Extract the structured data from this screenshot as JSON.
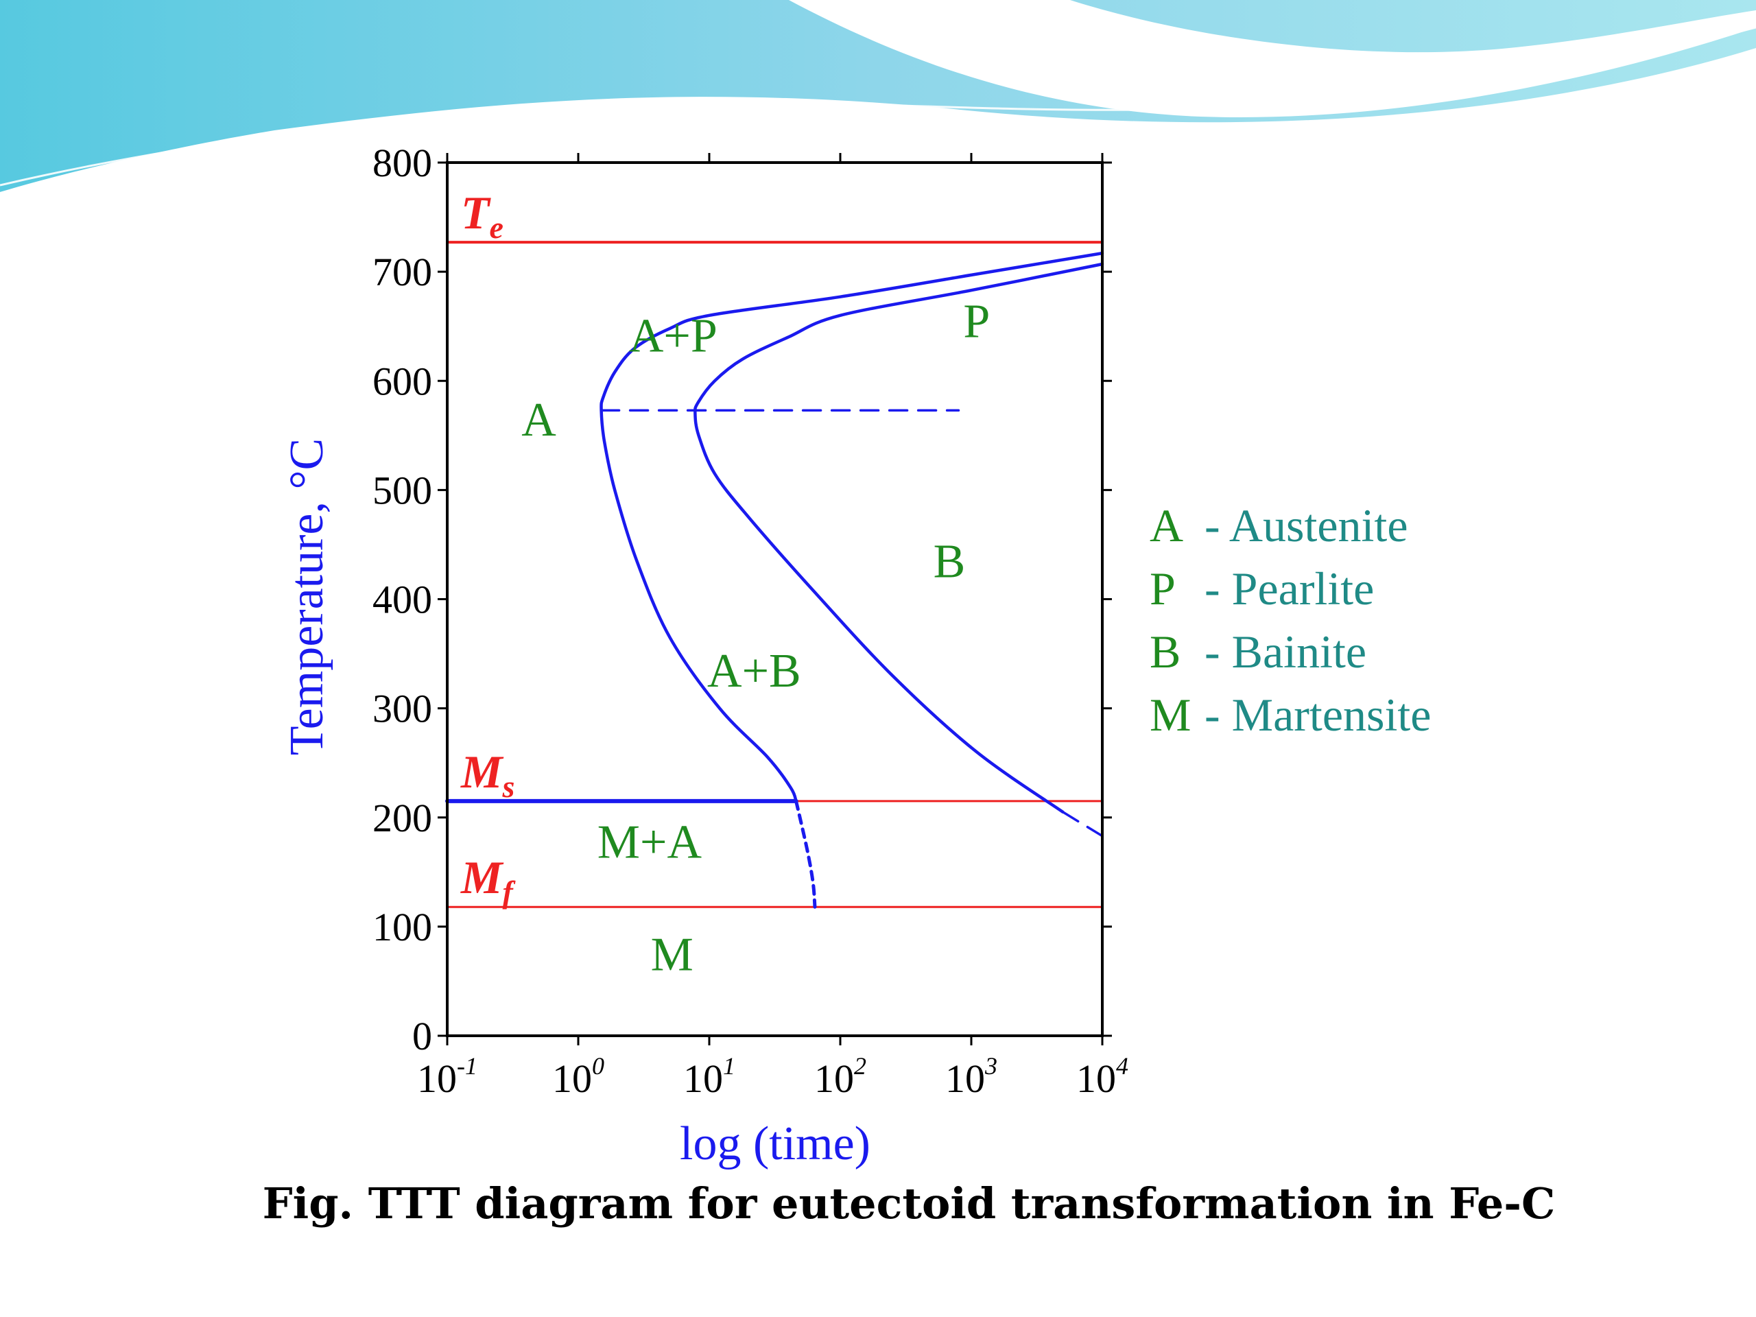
{
  "caption": "Fig. TTT diagram for eutectoid transformation in Fe-C",
  "colors": {
    "curve": "#1a1aee",
    "critical_line": "#ee2222",
    "region_label": "#1f8a1f",
    "legend_text": "#1f8a86",
    "axis": "#000000",
    "banner_light": "#bfeef0",
    "banner_dark": "#4fc0d8"
  },
  "legend": [
    {
      "key": "A",
      "label": "- Austenite"
    },
    {
      "key": "P",
      "label": "- Pearlite"
    },
    {
      "key": "B",
      "label": "- Bainite"
    },
    {
      "key": "M",
      "label": "- Martensite"
    }
  ],
  "chart_data": {
    "type": "line",
    "title": "",
    "xlabel": "log (time)",
    "ylabel": "Temperature, °C",
    "x_scale": "log10",
    "xlim": [
      0.1,
      10000
    ],
    "ylim": [
      0,
      800
    ],
    "x_ticks": [
      {
        "base": "10",
        "exp": "-1",
        "value": 0.1
      },
      {
        "base": "10",
        "exp": "0",
        "value": 1
      },
      {
        "base": "10",
        "exp": "1",
        "value": 10
      },
      {
        "base": "10",
        "exp": "2",
        "value": 100
      },
      {
        "base": "10",
        "exp": "3",
        "value": 1000
      },
      {
        "base": "10",
        "exp": "4",
        "value": 10000
      }
    ],
    "y_ticks": [
      0,
      100,
      200,
      300,
      400,
      500,
      600,
      700,
      800
    ],
    "reference_lines": [
      {
        "name": "Te",
        "main": "T",
        "sub": "e",
        "temperature": 727
      },
      {
        "name": "Ms",
        "main": "M",
        "sub": "s",
        "temperature": 215
      },
      {
        "name": "Mf",
        "main": "M",
        "sub": "f",
        "temperature": 118
      }
    ],
    "series": [
      {
        "name": "start-curve",
        "style": "solid",
        "points": [
          [
            10000,
            717
          ],
          [
            1000,
            697
          ],
          [
            100,
            677
          ],
          [
            10,
            660
          ],
          [
            5,
            648
          ],
          [
            2.7,
            630
          ],
          [
            1.9,
            608
          ],
          [
            1.55,
            585
          ],
          [
            1.5,
            573
          ],
          [
            1.58,
            545
          ],
          [
            1.9,
            500
          ],
          [
            2.8,
            435
          ],
          [
            5,
            365
          ],
          [
            12,
            300
          ],
          [
            28,
            255
          ],
          [
            42,
            227
          ],
          [
            46,
            215
          ]
        ]
      },
      {
        "name": "start-curve-below-Ms",
        "style": "dotted",
        "points": [
          [
            46,
            215
          ],
          [
            56,
            170
          ],
          [
            62,
            140
          ],
          [
            64,
            118
          ]
        ]
      },
      {
        "name": "finish-curve",
        "style": "solid",
        "points": [
          [
            10000,
            707
          ],
          [
            1000,
            683
          ],
          [
            100,
            660
          ],
          [
            40,
            640
          ],
          [
            18,
            620
          ],
          [
            11,
            600
          ],
          [
            8.2,
            580
          ],
          [
            7.8,
            570
          ],
          [
            8.3,
            550
          ],
          [
            11,
            515
          ],
          [
            20,
            475
          ],
          [
            60,
            410
          ],
          [
            250,
            330
          ],
          [
            1100,
            260
          ],
          [
            5000,
            205
          ]
        ]
      },
      {
        "name": "finish-curve-below-Ms",
        "style": "dashed",
        "points": [
          [
            5000,
            205
          ],
          [
            10000,
            183
          ]
        ]
      },
      {
        "name": "nose-line",
        "style": "dashed",
        "points": [
          [
            1.5,
            573
          ],
          [
            800,
            573
          ]
        ]
      },
      {
        "name": "Ms-segment",
        "style": "solid-thick",
        "points": [
          [
            0.1,
            215
          ],
          [
            46,
            215
          ]
        ]
      }
    ],
    "region_labels": [
      {
        "text": "A",
        "x": 0.5,
        "y": 550
      },
      {
        "text": "A+P",
        "x": 5.3,
        "y": 627
      },
      {
        "text": "P",
        "x": 1100,
        "y": 640
      },
      {
        "text": "B",
        "x": 680,
        "y": 420
      },
      {
        "text": "A+B",
        "x": 22,
        "y": 320
      },
      {
        "text": "M+A",
        "x": 3.5,
        "y": 163
      },
      {
        "text": "M",
        "x": 5.2,
        "y": 60
      }
    ]
  }
}
